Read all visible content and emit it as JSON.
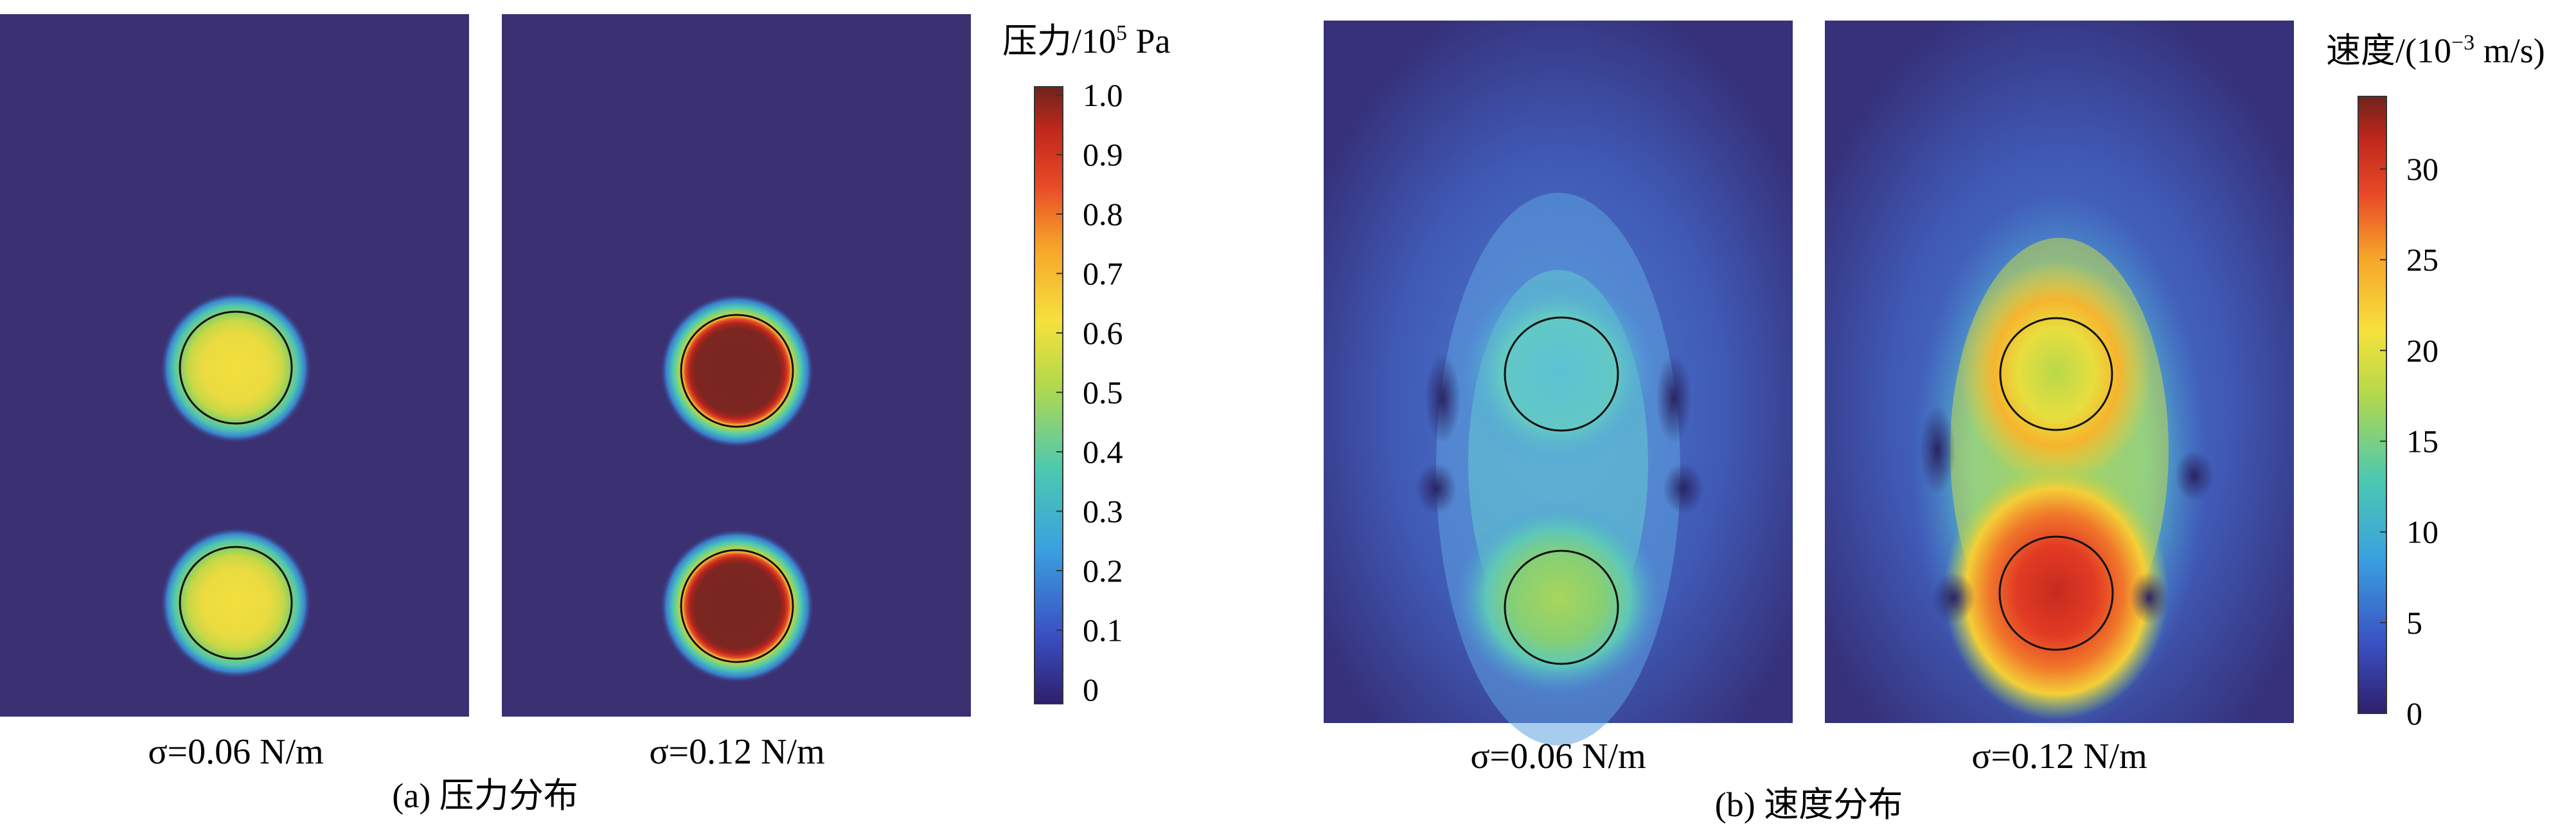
{
  "chart_data": [
    {
      "type": "heatmap",
      "caption": "(a) 压力分布",
      "panels": [
        {
          "label": "σ=0.06 N/m",
          "sigma": 0.06,
          "bubbles": [
            {
              "peak_pressure": 0.63
            },
            {
              "peak_pressure": 0.63
            }
          ]
        },
        {
          "label": "σ=0.12 N/m",
          "sigma": 0.12,
          "bubbles": [
            {
              "peak_pressure": 1.0
            },
            {
              "peak_pressure": 1.0
            }
          ]
        }
      ],
      "colorbar": {
        "title_text": "压力/10",
        "title_sup": "5",
        "title_unit": " Pa",
        "range": [
          0,
          1.0
        ],
        "ticks": [
          "1.0",
          "0.9",
          "0.8",
          "0.7",
          "0.6",
          "0.5",
          "0.4",
          "0.3",
          "0.2",
          "0.1",
          "0"
        ]
      }
    },
    {
      "type": "heatmap",
      "caption": "(b) 速度分布",
      "panels": [
        {
          "label": "σ=0.06 N/m",
          "sigma": 0.06,
          "peak_velocity": 20,
          "wake_velocity": 16
        },
        {
          "label": "σ=0.12 N/m",
          "sigma": 0.12,
          "peak_velocity": 34,
          "wake_velocity": 25
        }
      ],
      "colorbar": {
        "title_text": "速度/(10",
        "title_sup": "−3",
        "title_unit": " m/s)",
        "range": [
          0,
          34
        ],
        "ticks": [
          "30",
          "25",
          "20",
          "15",
          "10",
          "5",
          "0"
        ]
      }
    }
  ],
  "colors": {
    "background": "#3b3072",
    "colormap": [
      "#2e1f6b",
      "#3a4fc2",
      "#3aa0e0",
      "#4cc9b0",
      "#b6d94a",
      "#f6e13c",
      "#f7a42a",
      "#e84a27",
      "#c1271c",
      "#6e241d"
    ]
  }
}
